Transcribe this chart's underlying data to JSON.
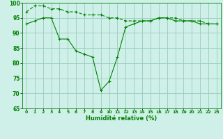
{
  "line1_x": [
    0,
    1,
    2,
    3,
    4,
    5,
    6,
    7,
    8,
    9,
    10,
    11,
    12,
    13,
    14,
    15,
    16,
    17,
    18,
    19,
    20,
    21,
    22,
    23
  ],
  "line1_y": [
    97,
    99,
    99,
    98,
    98,
    97,
    97,
    96,
    96,
    96,
    95,
    95,
    94,
    94,
    94,
    94,
    95,
    95,
    95,
    94,
    94,
    94,
    93,
    93
  ],
  "line2_x": [
    0,
    1,
    2,
    3,
    4,
    5,
    6,
    7,
    8,
    9,
    10,
    11,
    12,
    13,
    14,
    15,
    16,
    17,
    18,
    19,
    20,
    21,
    22,
    23
  ],
  "line2_y": [
    93,
    94,
    95,
    95,
    88,
    88,
    84,
    83,
    82,
    71,
    74,
    82,
    92,
    93,
    94,
    94,
    95,
    95,
    94,
    94,
    94,
    93,
    93,
    93
  ],
  "line_color": "#008000",
  "bg_color": "#cef0e8",
  "grid_color": "#99ccbb",
  "xlabel": "Humidité relative (%)",
  "ylim": [
    65,
    100
  ],
  "xlim": [
    -0.5,
    23.5
  ],
  "yticks": [
    65,
    70,
    75,
    80,
    85,
    90,
    95,
    100
  ],
  "xticks": [
    0,
    1,
    2,
    3,
    4,
    5,
    6,
    7,
    8,
    9,
    10,
    11,
    12,
    13,
    14,
    15,
    16,
    17,
    18,
    19,
    20,
    21,
    22,
    23
  ]
}
